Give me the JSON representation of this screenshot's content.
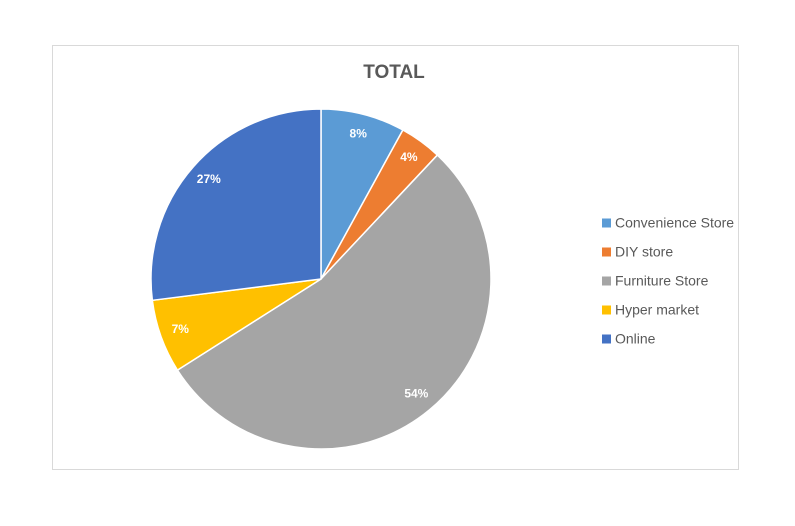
{
  "chart_data": {
    "type": "pie",
    "title": "TOTAL",
    "categories": [
      "Convenience Store",
      "DIY store",
      "Furniture Store",
      "Hyper market",
      "Online"
    ],
    "values": [
      8,
      4,
      54,
      7,
      27
    ],
    "value_labels": [
      "8%",
      "4%",
      "54%",
      "7%",
      "27%"
    ],
    "colors": [
      "#5b9bd5",
      "#ed7d31",
      "#a5a5a5",
      "#ffc000",
      "#4472c4"
    ],
    "legend": "right"
  }
}
